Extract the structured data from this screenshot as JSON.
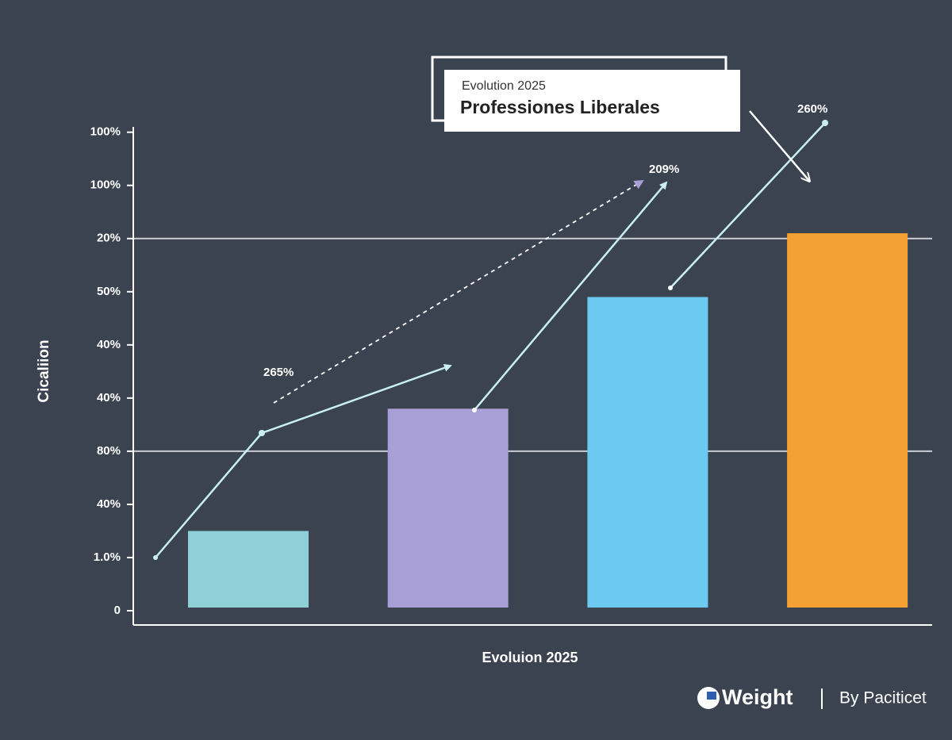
{
  "chart_data": {
    "type": "bar",
    "title_small": "Evolution 2025",
    "title": "Professiones Liberales",
    "x_label": "Evoluion 2025",
    "y_label": "Cicaliion",
    "categories": [
      null,
      null,
      null,
      null
    ],
    "values": [
      1.5,
      3.8,
      5.9,
      7.1
    ],
    "colors": [
      "#8ecfd8",
      "#a89fd6",
      "#6ccaf0",
      "#f5a033"
    ],
    "ylim": [
      0,
      9.1
    ],
    "yticks": [
      {
        "value": 0,
        "label": "0"
      },
      {
        "value": 1,
        "label": "1.0%"
      },
      {
        "value": 2,
        "label": "40%"
      },
      {
        "value": 3,
        "label": "80%"
      },
      {
        "value": 4,
        "label": "40%"
      },
      {
        "value": 5,
        "label": "40%"
      },
      {
        "value": 6,
        "label": "50%"
      },
      {
        "value": 7,
        "label": "20%"
      },
      {
        "value": 8,
        "label": "100%"
      },
      {
        "value": 9,
        "label": "100%"
      }
    ],
    "annotations": [
      "265%",
      "209%",
      "260%"
    ],
    "footer": {
      "brand": "Weight",
      "credit": "By Paciticet"
    }
  }
}
